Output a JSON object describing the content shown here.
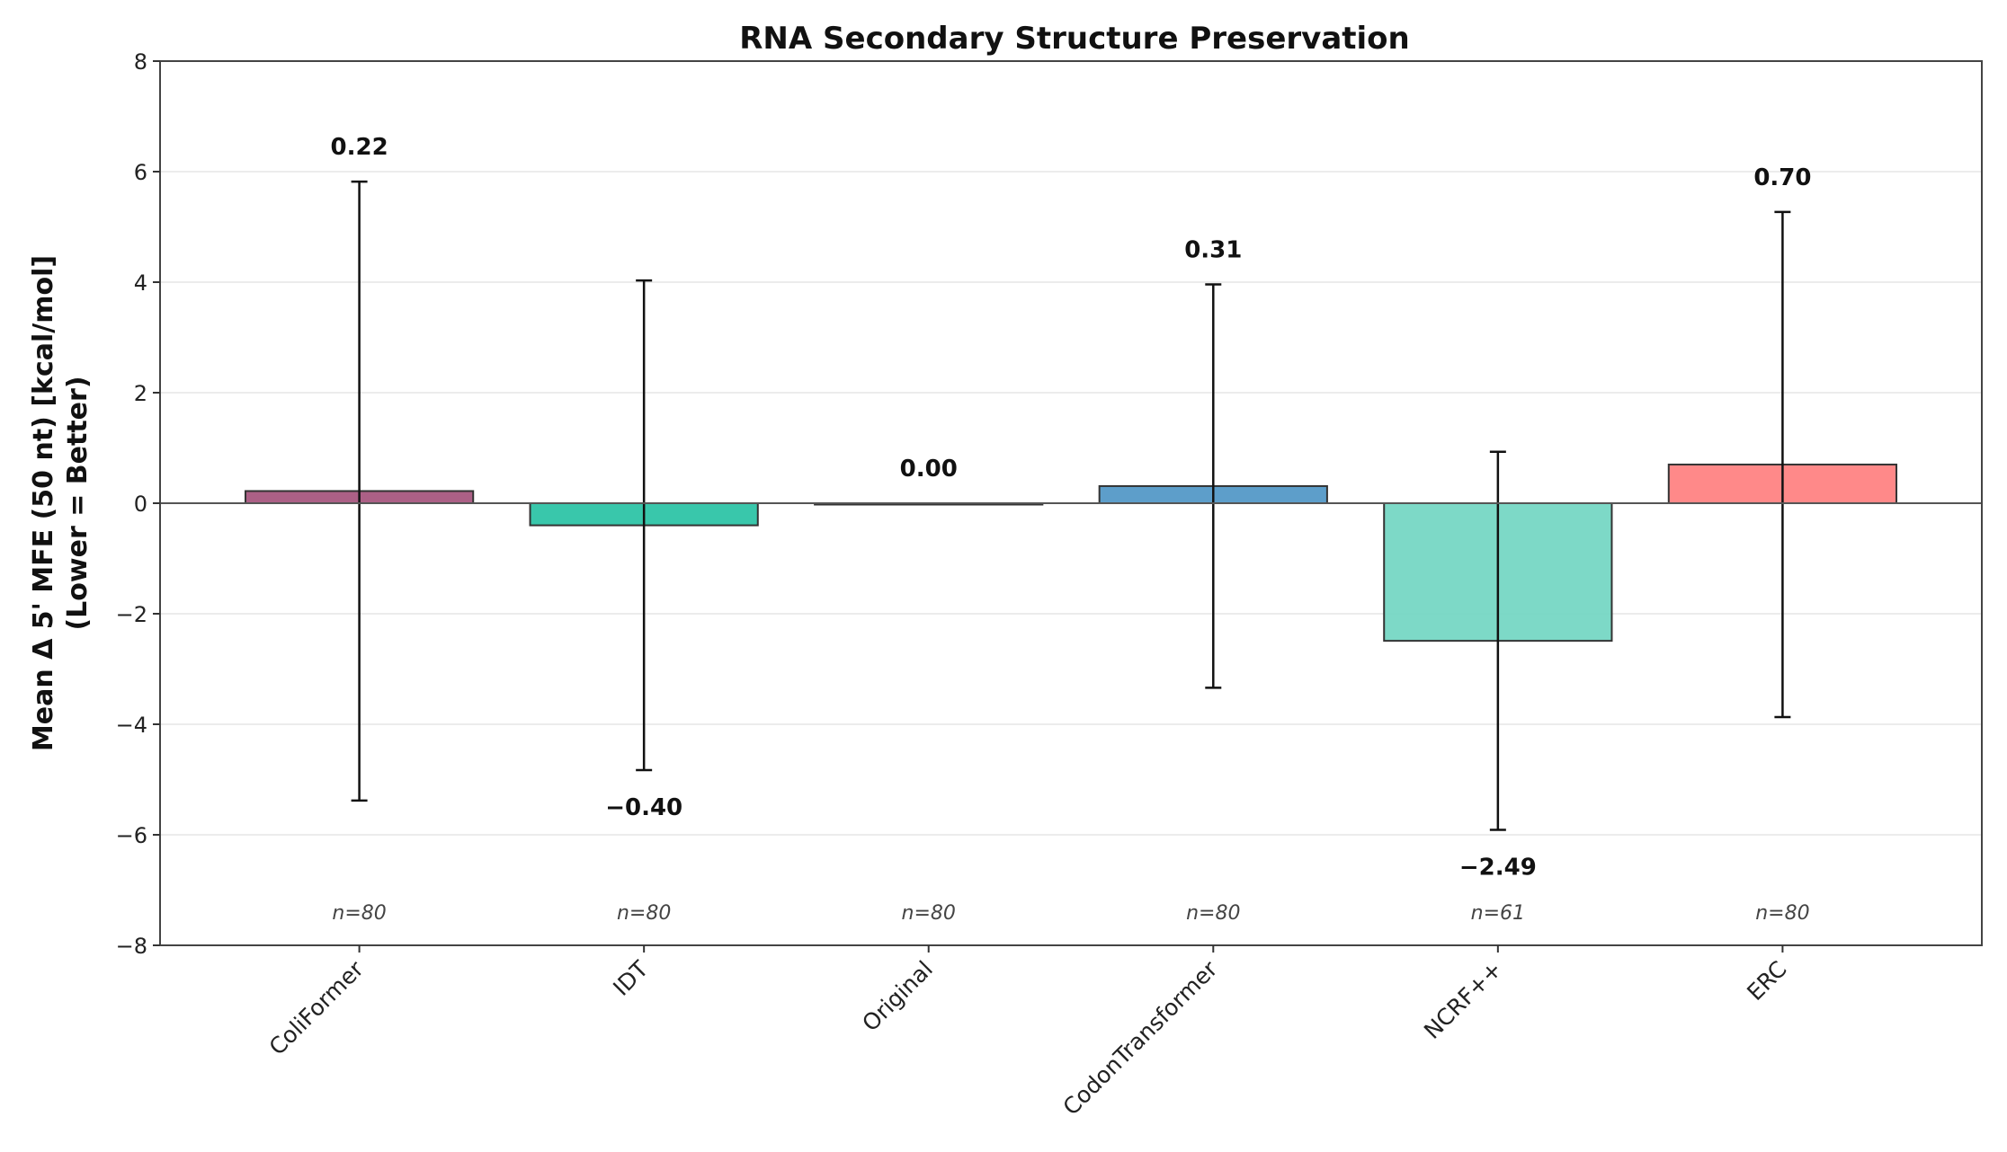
{
  "chart_data": {
    "type": "bar",
    "title": "RNA Secondary Structure Preservation",
    "xlabel": "",
    "ylabel": "Mean Δ 5' MFE (50 nt) [kcal/mol]",
    "ylabel_line2": "(Lower = Better)",
    "categories": [
      "ColiFormer",
      "IDT",
      "Original",
      "CodonTransformer",
      "NCRF++",
      "ERC"
    ],
    "values": [
      0.22,
      -0.4,
      0.0,
      0.31,
      -2.49,
      0.7
    ],
    "value_labels": [
      "0.22",
      "−0.40",
      "0.00",
      "0.31",
      "−2.49",
      "0.70"
    ],
    "error": [
      5.6,
      4.43,
      0.0,
      3.65,
      3.42,
      4.57
    ],
    "n_labels": [
      "n=80",
      "n=80",
      "n=80",
      "n=80",
      "n=61",
      "n=80"
    ],
    "colors": [
      "#a8577f",
      "#2ec4a6",
      "#7f8c8d",
      "#5499c7",
      "#76d7c4",
      "#ff8383"
    ],
    "ylim": [
      -8,
      8
    ],
    "yticks": [
      -8,
      -6,
      -4,
      -2,
      0,
      2,
      4,
      6,
      8
    ],
    "ytick_labels": [
      "−8",
      "−6",
      "−4",
      "−2",
      "0",
      "2",
      "4",
      "6",
      "8"
    ],
    "grid": "horizontal",
    "zero_line": true
  }
}
